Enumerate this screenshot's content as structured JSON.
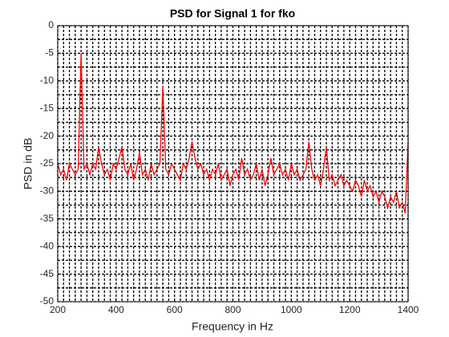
{
  "chart_data": {
    "type": "line",
    "title": "PSD for Signal 1 for fko",
    "xlabel": "Frequency in Hz",
    "ylabel": "PSD in dB",
    "x": [
      200,
      210,
      220,
      230,
      240,
      250,
      260,
      270,
      280,
      290,
      300,
      310,
      320,
      330,
      340,
      350,
      360,
      370,
      380,
      390,
      400,
      410,
      420,
      430,
      440,
      450,
      460,
      470,
      480,
      490,
      500,
      510,
      520,
      530,
      540,
      550,
      560,
      570,
      580,
      590,
      600,
      610,
      620,
      630,
      640,
      650,
      660,
      670,
      680,
      690,
      700,
      710,
      720,
      730,
      740,
      750,
      760,
      770,
      780,
      790,
      800,
      810,
      820,
      830,
      840,
      850,
      860,
      870,
      880,
      890,
      900,
      910,
      920,
      930,
      940,
      950,
      960,
      970,
      980,
      990,
      1000,
      1010,
      1020,
      1030,
      1040,
      1050,
      1060,
      1070,
      1080,
      1090,
      1100,
      1110,
      1120,
      1130,
      1140,
      1150,
      1160,
      1170,
      1180,
      1190,
      1200,
      1210,
      1220,
      1230,
      1240,
      1250,
      1260,
      1270,
      1280,
      1290,
      1300,
      1310,
      1320,
      1330,
      1340,
      1350,
      1360,
      1370,
      1380,
      1390,
      1400
    ],
    "series": [
      {
        "color": "#ff0000",
        "values": [
          -25,
          -27,
          -26,
          -28,
          -25,
          -26,
          -27,
          -26,
          -5,
          -26,
          -25,
          -27,
          -25,
          -26,
          -22,
          -25,
          -27,
          -26,
          -28,
          -25,
          -26,
          -24,
          -22,
          -26,
          -27,
          -25,
          -28,
          -26,
          -23,
          -27,
          -26,
          -28,
          -25,
          -27,
          -26,
          -25,
          -11,
          -26,
          -27,
          -25,
          -26,
          -27,
          -28,
          -25,
          -26,
          -24,
          -21,
          -24,
          -26,
          -25,
          -27,
          -26,
          -28,
          -26,
          -27,
          -25,
          -28,
          -27,
          -26,
          -29,
          -27,
          -26,
          -28,
          -24,
          -27,
          -26,
          -28,
          -27,
          -25,
          -28,
          -26,
          -29,
          -27,
          -24,
          -27,
          -26,
          -25,
          -27,
          -26,
          -28,
          -25,
          -27,
          -26,
          -28,
          -27,
          -26,
          -21,
          -26,
          -28,
          -27,
          -29,
          -26,
          -22,
          -28,
          -27,
          -29,
          -28,
          -27,
          -29,
          -28,
          -29,
          -30,
          -28,
          -29,
          -31,
          -28,
          -30,
          -29,
          -31,
          -30,
          -32,
          -30,
          -31,
          -33,
          -31,
          -32,
          -30,
          -33,
          -32,
          -34,
          -21
        ]
      }
    ],
    "xlim": [
      200,
      1400
    ],
    "xticks": [
      200,
      400,
      600,
      800,
      1000,
      1200,
      1400
    ],
    "ylim": [
      -50,
      0
    ],
    "yticks": [
      -50,
      -45,
      -40,
      -35,
      -30,
      -25,
      -20,
      -15,
      -10,
      -5,
      0
    ],
    "grid": true,
    "minor_grid_divisions": {
      "x": 10,
      "y": 2
    }
  }
}
